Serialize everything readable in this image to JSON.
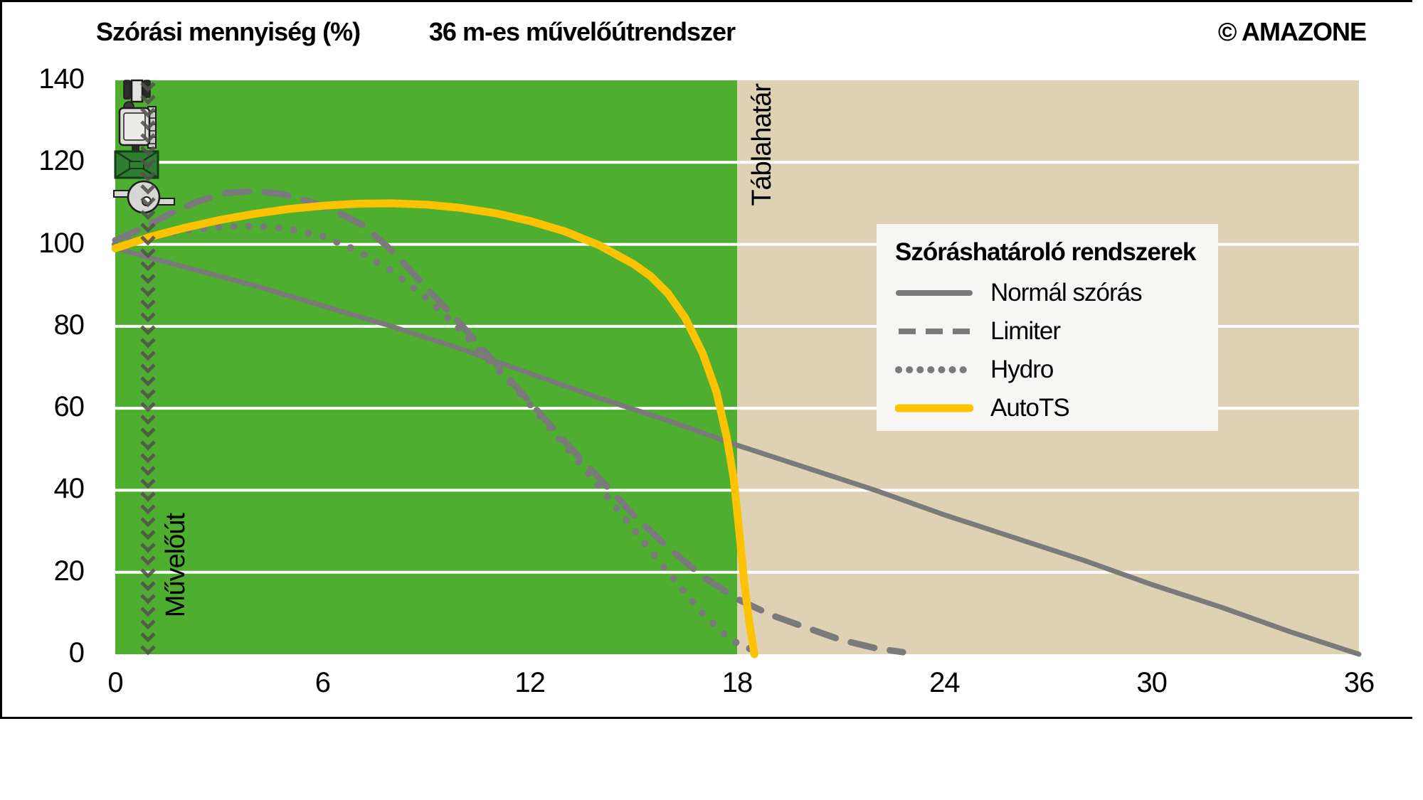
{
  "header": {
    "y_axis_title": "Szórási mennyiség (%)",
    "chart_title": "36 m-es művelőútrendszer",
    "copyright": "© AMAZONE"
  },
  "annotations": {
    "tramline": "Művelőút",
    "field_boundary": "Táblahatár"
  },
  "legend": {
    "title": "Szóráshatároló rendszerek",
    "items": [
      {
        "label": "Normál szórás",
        "style": "solid",
        "color": "#7a7a7a"
      },
      {
        "label": "Limiter",
        "style": "dashed",
        "color": "#7a7a7a"
      },
      {
        "label": "Hydro",
        "style": "dotted",
        "color": "#7a7a7a"
      },
      {
        "label": "AutoTS",
        "style": "solid",
        "color": "#fdc300"
      }
    ]
  },
  "colors": {
    "field_green": "#4dae2f",
    "beyond_boundary_tan": "#ded1b4",
    "gridline": "#ffffff",
    "curve_gray": "#7a7a7a",
    "autots_yellow": "#fdc300",
    "legend_background": "#f6f6f5",
    "tramline_chevron": "#55524d",
    "hopper_green": "#2e7d33"
  },
  "chart_data": {
    "type": "line",
    "title": "36 m-es művelőútrendszer",
    "ylabel": "Szórási mennyiség (%)",
    "xlabel": "",
    "xlim": [
      0,
      36
    ],
    "ylim": [
      0,
      140
    ],
    "x_ticks": [
      0,
      6,
      12,
      18,
      24,
      30,
      36
    ],
    "y_ticks": [
      0,
      20,
      40,
      60,
      80,
      100,
      120,
      140
    ],
    "grid": "horizontal-white",
    "legend_position": "right-middle",
    "field_boundary_x": 18,
    "tramline_x": 1,
    "regions": [
      {
        "name": "field",
        "from": 0,
        "to": 18,
        "color": "#4dae2f"
      },
      {
        "name": "beyond-boundary",
        "from": 18,
        "to": 36,
        "color": "#ded1b4"
      }
    ],
    "series": [
      {
        "name": "Normál szórás",
        "style": "solid",
        "color": "#7a7a7a",
        "width": 7,
        "points": [
          [
            0,
            99
          ],
          [
            2,
            94.5
          ],
          [
            4,
            90
          ],
          [
            6,
            85
          ],
          [
            8,
            80
          ],
          [
            10,
            74.5
          ],
          [
            12,
            68.5
          ],
          [
            14,
            62.5
          ],
          [
            16,
            57
          ],
          [
            18,
            51
          ],
          [
            20,
            45.5
          ],
          [
            22,
            40
          ],
          [
            24,
            34
          ],
          [
            26,
            28.5
          ],
          [
            28,
            23
          ],
          [
            30,
            17
          ],
          [
            32,
            11.5
          ],
          [
            34,
            5.5
          ],
          [
            36,
            0
          ]
        ]
      },
      {
        "name": "Limiter",
        "style": "dashed",
        "color": "#7a7a7a",
        "width": 9,
        "points": [
          [
            0,
            101
          ],
          [
            0.8,
            104
          ],
          [
            1.6,
            107.5
          ],
          [
            2.4,
            110.5
          ],
          [
            3.2,
            112.5
          ],
          [
            4,
            113
          ],
          [
            4.8,
            112.3
          ],
          [
            5.6,
            110.5
          ],
          [
            6.4,
            108
          ],
          [
            7.2,
            104.5
          ],
          [
            8,
            98.5
          ],
          [
            9,
            89.5
          ],
          [
            10,
            80.5
          ],
          [
            11,
            71
          ],
          [
            12,
            61.5
          ],
          [
            13,
            52
          ],
          [
            14,
            43
          ],
          [
            15,
            34
          ],
          [
            16,
            26
          ],
          [
            17,
            19
          ],
          [
            18,
            13.5
          ],
          [
            19,
            9.5
          ],
          [
            20,
            6.5
          ],
          [
            21,
            3.5
          ],
          [
            22,
            1.5
          ],
          [
            22.8,
            0.5
          ]
        ]
      },
      {
        "name": "Hydro",
        "style": "dotted",
        "color": "#7a7a7a",
        "width": 10,
        "points": [
          [
            0,
            100
          ],
          [
            1,
            102
          ],
          [
            2,
            103.3
          ],
          [
            3,
            104.2
          ],
          [
            4,
            104.5
          ],
          [
            5,
            103.8
          ],
          [
            6,
            102
          ],
          [
            7,
            98.5
          ],
          [
            8,
            93.5
          ],
          [
            9,
            87
          ],
          [
            10,
            79
          ],
          [
            11,
            70
          ],
          [
            12,
            61
          ],
          [
            13,
            51
          ],
          [
            14,
            41
          ],
          [
            15,
            30.5
          ],
          [
            16,
            20
          ],
          [
            17,
            10
          ],
          [
            17.8,
            3.5
          ],
          [
            18.6,
            0.5
          ]
        ]
      },
      {
        "name": "AutoTS",
        "style": "solid",
        "color": "#fdc300",
        "width": 11,
        "points": [
          [
            0,
            99
          ],
          [
            1,
            101.8
          ],
          [
            2,
            104
          ],
          [
            3,
            105.9
          ],
          [
            4,
            107.4
          ],
          [
            5,
            108.6
          ],
          [
            6,
            109.4
          ],
          [
            7,
            109.9
          ],
          [
            8,
            110
          ],
          [
            9,
            109.7
          ],
          [
            10,
            108.9
          ],
          [
            11,
            107.6
          ],
          [
            12,
            105.7
          ],
          [
            13,
            103.2
          ],
          [
            14,
            99.8
          ],
          [
            15,
            95.2
          ],
          [
            15.5,
            92.2
          ],
          [
            16,
            88
          ],
          [
            16.5,
            82
          ],
          [
            17,
            73.5
          ],
          [
            17.4,
            64
          ],
          [
            17.7,
            53
          ],
          [
            17.9,
            43
          ],
          [
            18.05,
            31
          ],
          [
            18.2,
            18
          ],
          [
            18.35,
            8
          ],
          [
            18.5,
            0
          ]
        ]
      }
    ]
  }
}
